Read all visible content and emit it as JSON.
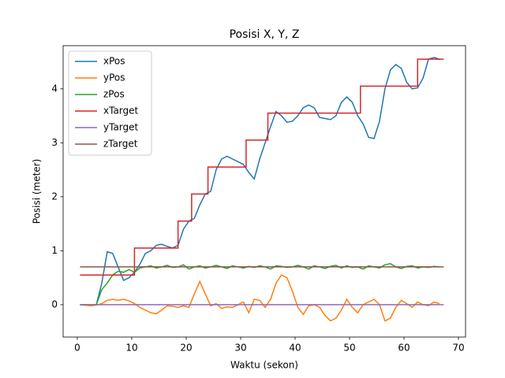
{
  "chart_data": {
    "type": "line",
    "title": "Posisi X, Y, Z",
    "xlabel": "Waktu (sekon)",
    "ylabel": "Posisi (meter)",
    "xlim": [
      -2.6,
      71.3
    ],
    "ylim": [
      -0.6,
      4.8
    ],
    "xticks": [
      0,
      10,
      20,
      30,
      40,
      50,
      60,
      70
    ],
    "yticks": [
      0,
      1,
      2,
      3,
      4
    ],
    "legend": "upper left",
    "series": [
      {
        "name": "xPos",
        "color": "#1f77b4",
        "x": [
          0.5,
          1.5,
          2.5,
          3.5,
          4.5,
          5.5,
          6.5,
          7.5,
          8.5,
          9.5,
          10.5,
          11.5,
          12.5,
          13.5,
          14.5,
          15.5,
          16.5,
          17.5,
          18.5,
          19.5,
          20.5,
          21.5,
          22.5,
          23.5,
          24.5,
          25.5,
          26.5,
          27.5,
          28.5,
          29.5,
          30.5,
          31.5,
          32.5,
          33.5,
          34.5,
          35.5,
          36.5,
          37.5,
          38.5,
          39.5,
          40.5,
          41.5,
          42.5,
          43.5,
          44.5,
          45.5,
          46.5,
          47.5,
          48.5,
          49.5,
          50.5,
          51.5,
          52.5,
          53.5,
          54.5,
          55.5,
          56.5,
          57.5,
          58.5,
          59.5,
          60.5,
          61.5,
          62.5,
          63.5,
          64.5,
          65.5,
          66.5
        ],
        "values": [
          0.0,
          0.0,
          -0.01,
          0.0,
          0.4,
          0.98,
          0.95,
          0.7,
          0.45,
          0.5,
          0.6,
          0.75,
          0.95,
          1.0,
          1.1,
          1.12,
          1.08,
          1.05,
          1.1,
          1.4,
          1.55,
          1.6,
          1.85,
          2.05,
          2.1,
          2.5,
          2.7,
          2.75,
          2.7,
          2.65,
          2.6,
          2.45,
          2.33,
          2.7,
          3.0,
          3.3,
          3.58,
          3.5,
          3.38,
          3.4,
          3.5,
          3.65,
          3.7,
          3.65,
          3.47,
          3.45,
          3.43,
          3.5,
          3.75,
          3.85,
          3.75,
          3.5,
          3.35,
          3.1,
          3.08,
          3.4,
          4.0,
          4.35,
          4.45,
          4.38,
          4.12,
          4.0,
          4.02,
          4.2,
          4.55,
          4.58,
          4.55
        ]
      },
      {
        "name": "yPos",
        "color": "#ff7f0e",
        "x": [
          0.5,
          1.5,
          2.5,
          3.5,
          4.5,
          5.5,
          6.5,
          7.5,
          8.5,
          9.5,
          10.5,
          11.5,
          12.5,
          13.5,
          14.5,
          15.5,
          16.5,
          17.5,
          18.5,
          19.5,
          20.5,
          21.5,
          22.5,
          23.5,
          24.5,
          25.5,
          26.5,
          27.5,
          28.5,
          29.5,
          30.5,
          31.5,
          32.5,
          33.5,
          34.5,
          35.5,
          36.5,
          37.5,
          38.5,
          39.5,
          40.5,
          41.5,
          42.5,
          43.5,
          44.5,
          45.5,
          46.5,
          47.5,
          48.5,
          49.5,
          50.5,
          51.5,
          52.5,
          53.5,
          54.5,
          55.5,
          56.5,
          57.5,
          58.5,
          59.5,
          60.5,
          61.5,
          62.5,
          63.5,
          64.5,
          65.5,
          66.5
        ],
        "values": [
          0.0,
          -0.01,
          -0.02,
          -0.01,
          0.02,
          0.08,
          0.1,
          0.08,
          0.1,
          0.07,
          0.02,
          -0.05,
          -0.1,
          -0.15,
          -0.17,
          -0.1,
          -0.02,
          -0.03,
          -0.05,
          -0.02,
          -0.05,
          0.2,
          0.43,
          0.2,
          -0.02,
          0.02,
          -0.07,
          -0.04,
          -0.05,
          0.0,
          0.05,
          -0.15,
          0.1,
          0.08,
          -0.05,
          0.1,
          0.4,
          0.55,
          0.5,
          0.25,
          -0.05,
          -0.18,
          -0.02,
          0.0,
          -0.05,
          -0.2,
          -0.3,
          -0.25,
          -0.1,
          0.1,
          -0.05,
          -0.15,
          0.0,
          0.05,
          0.1,
          0.0,
          -0.3,
          -0.25,
          -0.05,
          0.08,
          0.02,
          -0.05,
          0.05,
          0.0,
          -0.02,
          0.05,
          0.02
        ]
      },
      {
        "name": "zPos",
        "color": "#2ca02c",
        "x": [
          0.5,
          1.5,
          2.5,
          3.5,
          4.5,
          5.5,
          6.5,
          7.5,
          8.5,
          9.5,
          10.5,
          11.5,
          12.5,
          13.5,
          14.5,
          15.5,
          16.5,
          17.5,
          18.5,
          19.5,
          20.5,
          21.5,
          22.5,
          23.5,
          24.5,
          25.5,
          26.5,
          27.5,
          28.5,
          29.5,
          30.5,
          31.5,
          32.5,
          33.5,
          34.5,
          35.5,
          36.5,
          37.5,
          38.5,
          39.5,
          40.5,
          41.5,
          42.5,
          43.5,
          44.5,
          45.5,
          46.5,
          47.5,
          48.5,
          49.5,
          50.5,
          51.5,
          52.5,
          53.5,
          54.5,
          55.5,
          56.5,
          57.5,
          58.5,
          59.5,
          60.5,
          61.5,
          62.5,
          63.5,
          64.5,
          65.5,
          66.5
        ],
        "values": [
          0.0,
          0.0,
          0.0,
          0.0,
          0.28,
          0.4,
          0.55,
          0.62,
          0.6,
          0.65,
          0.6,
          0.68,
          0.7,
          0.72,
          0.68,
          0.7,
          0.73,
          0.69,
          0.7,
          0.74,
          0.66,
          0.7,
          0.72,
          0.68,
          0.7,
          0.73,
          0.7,
          0.67,
          0.72,
          0.7,
          0.68,
          0.71,
          0.69,
          0.72,
          0.7,
          0.66,
          0.72,
          0.71,
          0.69,
          0.7,
          0.73,
          0.7,
          0.66,
          0.72,
          0.7,
          0.67,
          0.71,
          0.73,
          0.68,
          0.72,
          0.69,
          0.7,
          0.66,
          0.72,
          0.7,
          0.68,
          0.74,
          0.76,
          0.7,
          0.67,
          0.71,
          0.72,
          0.68,
          0.7,
          0.69,
          0.71,
          0.7
        ]
      },
      {
        "name": "xTarget",
        "color": "#d62728",
        "x": [
          0.5,
          10.5,
          10.5,
          18.5,
          18.5,
          21,
          21,
          24,
          24,
          31,
          31,
          35,
          35,
          52,
          52,
          62.5,
          62.5,
          67.3
        ],
        "values": [
          0.55,
          0.55,
          1.05,
          1.05,
          1.55,
          1.55,
          2.05,
          2.05,
          2.55,
          2.55,
          3.05,
          3.05,
          3.55,
          3.55,
          4.05,
          4.05,
          4.55,
          4.55
        ]
      },
      {
        "name": "yTarget",
        "color": "#9467bd",
        "x": [
          0.5,
          67.3
        ],
        "values": [
          0,
          0
        ]
      },
      {
        "name": "zTarget",
        "color": "#8c564b",
        "x": [
          0.5,
          67.3
        ],
        "values": [
          0.7,
          0.7
        ]
      }
    ]
  }
}
